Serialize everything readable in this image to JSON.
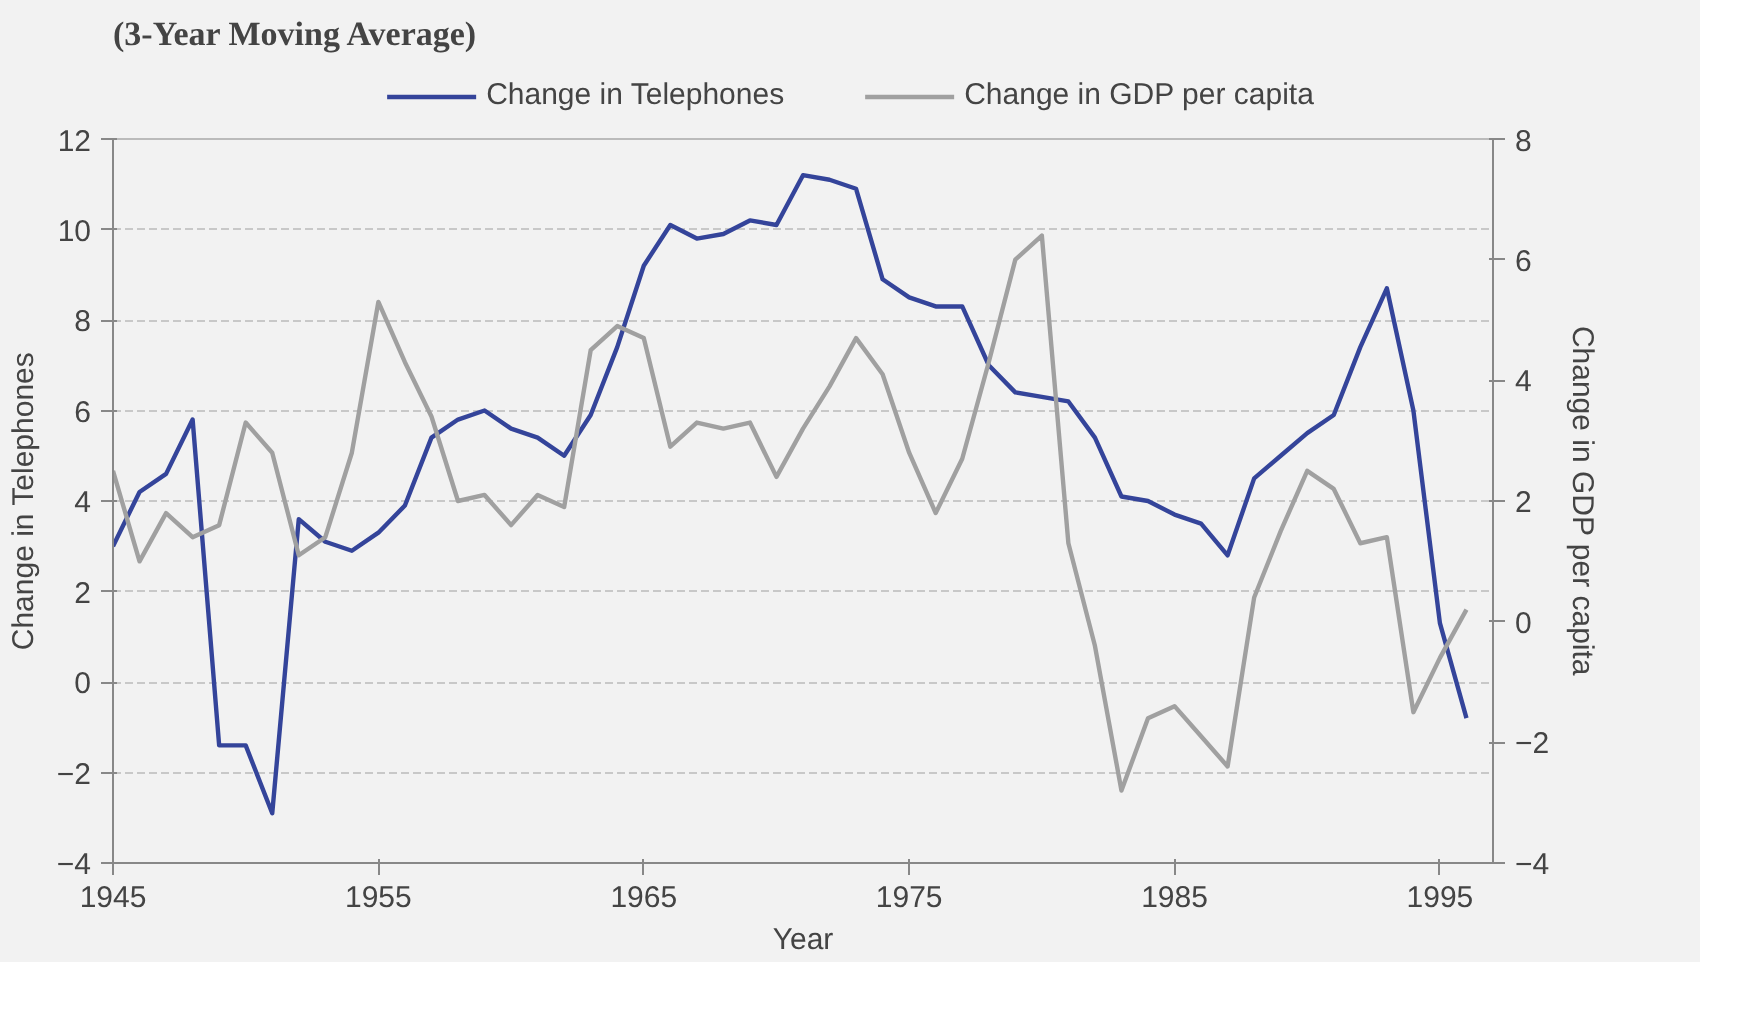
{
  "chart_data": {
    "type": "line",
    "title": "(3-Year Moving Average)",
    "xlabel": "Year",
    "ylabel": "Change in Telephones",
    "y2label": "Change in GDP per capita",
    "x": [
      1945,
      1946,
      1947,
      1948,
      1949,
      1950,
      1951,
      1952,
      1953,
      1954,
      1955,
      1956,
      1957,
      1958,
      1959,
      1960,
      1961,
      1962,
      1963,
      1964,
      1965,
      1966,
      1967,
      1968,
      1969,
      1970,
      1971,
      1972,
      1973,
      1974,
      1975,
      1976,
      1977,
      1978,
      1979,
      1980,
      1981,
      1982,
      1983,
      1984,
      1985,
      1986,
      1987,
      1988,
      1989,
      1990,
      1991,
      1992,
      1993,
      1994,
      1995,
      1996
    ],
    "series": [
      {
        "name": "Change in Telephones",
        "color": "#34449a",
        "values": [
          3.0,
          4.2,
          4.6,
          5.8,
          -1.4,
          -1.4,
          -2.9,
          3.6,
          3.1,
          2.9,
          3.3,
          3.9,
          5.4,
          5.8,
          6.0,
          5.6,
          5.4,
          5.0,
          5.9,
          7.4,
          9.2,
          10.1,
          9.8,
          9.9,
          10.2,
          10.1,
          11.2,
          11.1,
          10.9,
          8.9,
          8.5,
          8.3,
          8.3,
          7.0,
          6.4,
          6.3,
          6.2,
          5.4,
          4.1,
          4.0,
          3.7,
          3.5,
          2.8,
          4.5,
          5.0,
          5.5,
          5.9,
          7.4,
          8.7,
          6.0,
          1.3,
          -0.8
        ]
      },
      {
        "name": "Change in GDP per capita",
        "color": "#a0a0a0",
        "axis": "y2",
        "values": [
          2.5,
          1.0,
          1.8,
          1.4,
          1.6,
          3.3,
          2.8,
          1.1,
          1.4,
          2.8,
          5.3,
          4.3,
          3.4,
          2.0,
          2.1,
          1.6,
          2.1,
          1.9,
          4.5,
          4.9,
          4.7,
          2.9,
          3.3,
          3.2,
          3.3,
          2.4,
          3.2,
          3.9,
          4.7,
          4.1,
          2.8,
          1.8,
          2.7,
          4.3,
          6.0,
          6.4,
          1.3,
          -0.4,
          -2.8,
          -1.6,
          -1.4,
          -1.9,
          -2.4,
          0.4,
          1.5,
          2.5,
          2.2,
          1.3,
          1.4,
          -1.5,
          -0.6,
          0.2
        ]
      }
    ],
    "xlim": [
      1945,
      1997
    ],
    "xticks": [
      1945,
      1955,
      1965,
      1975,
      1985,
      1995
    ],
    "ylim": [
      -4,
      12
    ],
    "yticks": [
      -4,
      -2,
      0,
      2,
      4,
      6,
      8,
      10,
      12
    ],
    "y2lim": [
      -4,
      8
    ],
    "y2ticks": [
      -4,
      -2,
      0,
      2,
      4,
      6,
      8
    ],
    "grid": "y",
    "legend": "top",
    "marker": "none",
    "line_style": "solid"
  }
}
